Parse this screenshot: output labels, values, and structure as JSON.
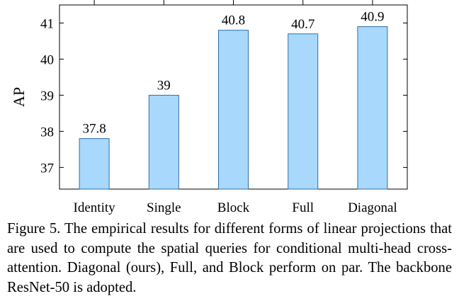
{
  "chart_data": {
    "type": "bar",
    "categories": [
      "Identity",
      "Single",
      "Block",
      "Full",
      "Diagonal"
    ],
    "values": [
      37.8,
      39,
      40.8,
      40.7,
      40.9
    ],
    "value_labels": [
      "37.8",
      "39",
      "40.8",
      "40.7",
      "40.9"
    ],
    "xlabel": "",
    "ylabel": "AP",
    "yticks": [
      37,
      38,
      39,
      40,
      41
    ],
    "ylim": [
      36.4,
      41.5
    ],
    "bar_color": "#a8d8fb",
    "bar_edge_color": "#2f6fa8",
    "grid": false,
    "legend": "none"
  },
  "caption": {
    "text": "Figure 5. The empirical results for different forms of linear projections that are used to compute the spatial queries for conditional multi-head cross-attention. Diagonal (ours), Full, and Block perform on par. The backbone ResNet-50 is adopted."
  }
}
